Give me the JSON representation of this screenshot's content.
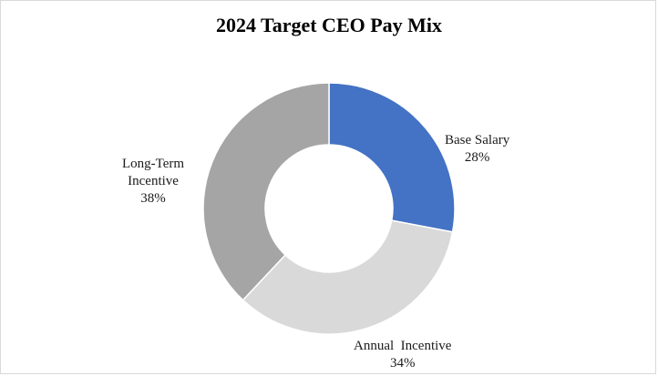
{
  "chart_data": {
    "type": "pie",
    "variant": "donut",
    "title": "2024 Target CEO Pay Mix",
    "slices": [
      {
        "label": "Base Salary",
        "label_lines": [
          "Base Salary"
        ],
        "value": 28,
        "value_label": "28%",
        "color": "#4472c4"
      },
      {
        "label": "Annual Incentive",
        "label_lines": [
          "Annual  Incentive"
        ],
        "value": 34,
        "value_label": "34%",
        "color": "#d9d9d9"
      },
      {
        "label": "Long-Term Incentive",
        "label_lines": [
          "Long-Term",
          "Incentive"
        ],
        "value": 38,
        "value_label": "38%",
        "color": "#a5a5a5"
      }
    ],
    "start_angle_deg": 0,
    "direction": "clockwise",
    "legend": "none"
  }
}
